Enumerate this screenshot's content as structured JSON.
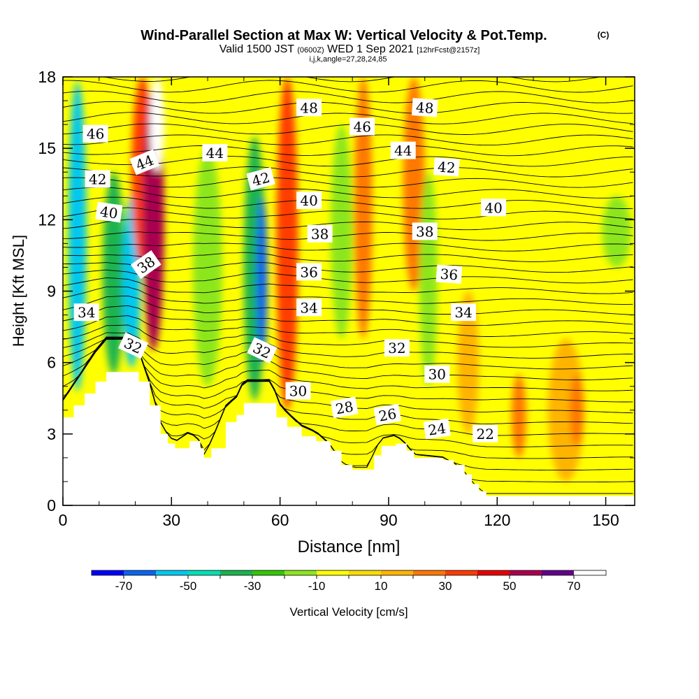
{
  "chart_data": {
    "type": "heatmap",
    "title": "Wind-Parallel Section at Max W: Vertical Velocity & Pot.Temp.",
    "title_mark": "(C)",
    "subtitle": {
      "valid": "Valid 1500 JST",
      "utc": "(0600Z)",
      "date": "WED 1 Sep 2021",
      "forecast": "[12hrFcst@2157z]"
    },
    "params_line": "i,j,k,angle=27,28,24,85",
    "xlabel": "Distance [nm]",
    "ylabel": "Height [Kft MSL]",
    "xlim": [
      0,
      158
    ],
    "ylim": [
      0,
      18
    ],
    "x_ticks": [
      0,
      30,
      60,
      90,
      120,
      150
    ],
    "y_ticks": [
      0,
      3,
      6,
      9,
      12,
      15,
      18
    ],
    "colorbar": {
      "label": "Vertical Velocity [cm/s]",
      "min": -80,
      "max": 80,
      "step": 10,
      "tick_labels": [
        "-70",
        "-50",
        "-30",
        "-10",
        "10",
        "30",
        "50",
        "70"
      ],
      "tick_values": [
        -70,
        -50,
        -30,
        -10,
        10,
        30,
        50,
        70
      ],
      "colors": [
        "#0000ff",
        "#0a64f0",
        "#00c8f0",
        "#00e0b4",
        "#1ab450",
        "#32c800",
        "#8ce61e",
        "#ffff00",
        "#fadc00",
        "#ffb400",
        "#ff7800",
        "#ff3c00",
        "#e60000",
        "#aa0050",
        "#64008c",
        "#ffffff"
      ]
    },
    "vertical_velocity_features": [
      {
        "x": 4,
        "y0": 4.8,
        "y1": 17.8,
        "half_width": 2.5,
        "w": -55
      },
      {
        "x": 14,
        "y0": 5.5,
        "y1": 14,
        "half_width": 3,
        "w": -35
      },
      {
        "x": 19,
        "y0": 5.8,
        "y1": 13,
        "half_width": 2.5,
        "w": -55
      },
      {
        "x": 22,
        "y0": 10,
        "y1": 18,
        "half_width": 3,
        "w": 35
      },
      {
        "x": 25,
        "y0": 6.5,
        "y1": 17.5,
        "half_width": 3,
        "w": 55
      },
      {
        "x": 26,
        "y0": 14,
        "y1": 18,
        "half_width": 2,
        "w": 75
      },
      {
        "x": 40,
        "y0": 5,
        "y1": 15,
        "half_width": 4,
        "w": -15
      },
      {
        "x": 53,
        "y0": 4.4,
        "y1": 15.5,
        "half_width": 3,
        "w": -40
      },
      {
        "x": 55,
        "y0": 6,
        "y1": 13,
        "half_width": 1.5,
        "w": -65
      },
      {
        "x": 62,
        "y0": 4,
        "y1": 18,
        "half_width": 3,
        "w": 30
      },
      {
        "x": 77,
        "y0": 7,
        "y1": 16,
        "half_width": 3,
        "w": -15
      },
      {
        "x": 83,
        "y0": 7,
        "y1": 18,
        "half_width": 2.5,
        "w": 20
      },
      {
        "x": 97,
        "y0": 9,
        "y1": 18,
        "half_width": 3,
        "w": 20
      },
      {
        "x": 101,
        "y0": 5,
        "y1": 14,
        "half_width": 2.5,
        "w": -12
      },
      {
        "x": 112,
        "y0": 3,
        "y1": 9,
        "half_width": 3,
        "w": 10
      },
      {
        "x": 126,
        "y0": 2,
        "y1": 5.5,
        "half_width": 2,
        "w": 20
      },
      {
        "x": 139,
        "y0": 1,
        "y1": 7,
        "half_width": 5,
        "w": 15
      },
      {
        "x": 142,
        "y0": 2.5,
        "y1": 5.5,
        "half_width": 2,
        "w": 25
      },
      {
        "x": 153,
        "y0": 10,
        "y1": 13,
        "half_width": 4,
        "w": -15
      }
    ],
    "terrain_height_kft": [
      [
        0,
        3.7
      ],
      [
        3,
        4.2
      ],
      [
        6,
        4.7
      ],
      [
        9,
        5.2
      ],
      [
        12,
        5.6
      ],
      [
        18,
        5.6
      ],
      [
        21,
        5.2
      ],
      [
        24,
        4.2
      ],
      [
        27,
        3.0
      ],
      [
        29,
        2.6
      ],
      [
        31,
        2.4
      ],
      [
        35,
        2.7
      ],
      [
        38,
        2.4
      ],
      [
        39,
        2.0
      ],
      [
        41,
        2.4
      ],
      [
        45,
        3.5
      ],
      [
        48,
        3.8
      ],
      [
        50,
        4.3
      ],
      [
        58,
        4.3
      ],
      [
        59,
        3.7
      ],
      [
        62,
        3.3
      ],
      [
        66,
        2.9
      ],
      [
        70,
        2.7
      ],
      [
        74,
        2.3
      ],
      [
        77,
        1.7
      ],
      [
        80,
        1.5
      ],
      [
        84,
        1.5
      ],
      [
        86,
        2.1
      ],
      [
        88,
        2.5
      ],
      [
        92,
        2.6
      ],
      [
        95,
        2.3
      ],
      [
        97,
        2.0
      ],
      [
        105,
        1.9
      ],
      [
        108,
        1.7
      ],
      [
        111,
        1.3
      ],
      [
        113,
        0.9
      ],
      [
        115,
        0.6
      ],
      [
        117,
        0.4
      ],
      [
        158,
        0.4
      ]
    ],
    "isentrope_labels": [
      {
        "text": "46",
        "x": 9,
        "y": 15.6,
        "angle": 0
      },
      {
        "text": "44",
        "x": 22.6,
        "y": 14.4,
        "angle": -22
      },
      {
        "text": "44",
        "x": 42,
        "y": 14.8,
        "angle": 0
      },
      {
        "text": "42",
        "x": 9.6,
        "y": 13.7,
        "angle": 0
      },
      {
        "text": "42",
        "x": 54.7,
        "y": 13.7,
        "angle": -15
      },
      {
        "text": "40",
        "x": 12.7,
        "y": 12.3,
        "angle": 8
      },
      {
        "text": "40",
        "x": 68,
        "y": 12.8,
        "angle": 0
      },
      {
        "text": "40",
        "x": 119,
        "y": 12.5,
        "angle": 0
      },
      {
        "text": "48",
        "x": 68,
        "y": 16.7,
        "angle": 0
      },
      {
        "text": "48",
        "x": 100,
        "y": 16.7,
        "angle": 4
      },
      {
        "text": "46",
        "x": 82.7,
        "y": 15.9,
        "angle": 0
      },
      {
        "text": "44",
        "x": 94,
        "y": 14.9,
        "angle": 0
      },
      {
        "text": "42",
        "x": 106,
        "y": 14.2,
        "angle": 4
      },
      {
        "text": "38",
        "x": 23,
        "y": 10.1,
        "angle": -35
      },
      {
        "text": "38",
        "x": 71,
        "y": 11.4,
        "angle": 0
      },
      {
        "text": "38",
        "x": 100,
        "y": 11.5,
        "angle": 0
      },
      {
        "text": "36",
        "x": 68,
        "y": 9.8,
        "angle": 0
      },
      {
        "text": "36",
        "x": 106.7,
        "y": 9.7,
        "angle": 4
      },
      {
        "text": "34",
        "x": 6.5,
        "y": 8.1,
        "angle": 0
      },
      {
        "text": "34",
        "x": 68,
        "y": 8.3,
        "angle": 0
      },
      {
        "text": "34",
        "x": 110.7,
        "y": 8.1,
        "angle": 0
      },
      {
        "text": "32",
        "x": 19.4,
        "y": 6.7,
        "angle": 25
      },
      {
        "text": "32",
        "x": 55,
        "y": 6.5,
        "angle": 25
      },
      {
        "text": "32",
        "x": 92.3,
        "y": 6.6,
        "angle": 0
      },
      {
        "text": "30",
        "x": 65,
        "y": 4.8,
        "angle": 0
      },
      {
        "text": "30",
        "x": 103.4,
        "y": 5.5,
        "angle": 0
      },
      {
        "text": "28",
        "x": 77.8,
        "y": 4.1,
        "angle": -10
      },
      {
        "text": "26",
        "x": 89.7,
        "y": 3.8,
        "angle": -10
      },
      {
        "text": "24",
        "x": 103.4,
        "y": 3.2,
        "angle": -8
      },
      {
        "text": "22",
        "x": 116.7,
        "y": 3.0,
        "angle": 0
      }
    ]
  }
}
